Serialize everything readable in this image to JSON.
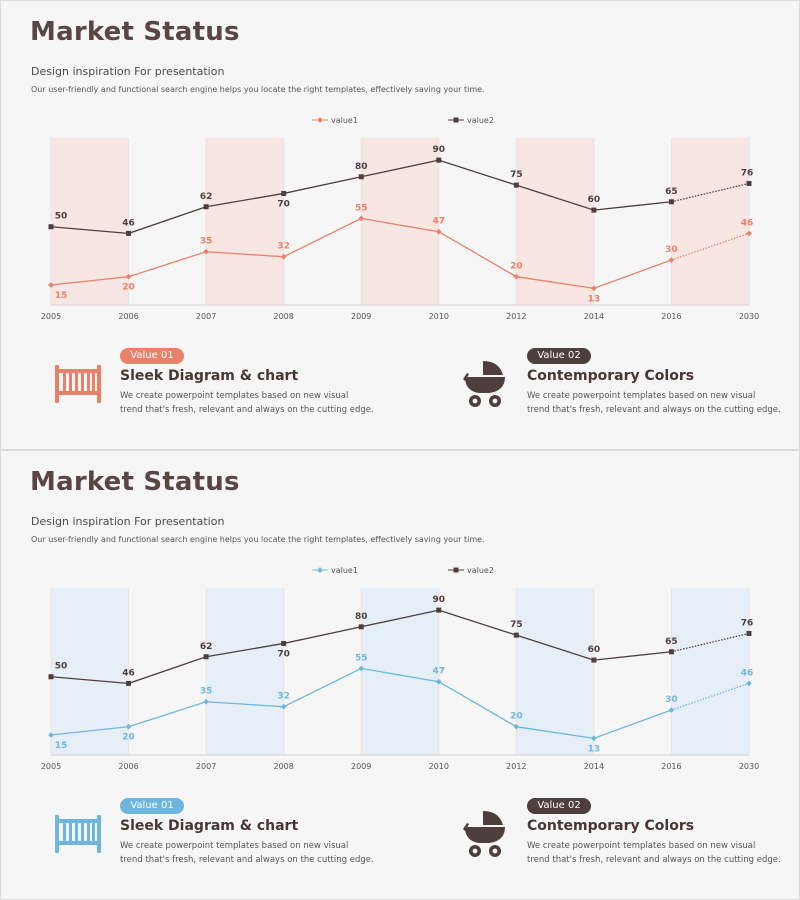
{
  "slides": [
    {
      "title": "Market Status",
      "subtitle": "Design inspiration For presentation",
      "description": "Our user-friendly and functional search engine helps you locate the right templates, effectively saving your time.",
      "accent": "#e8806a",
      "band": "#f8e6e2",
      "cards": [
        {
          "badge": "Value 01",
          "title": "Sleek Diagram & chart",
          "text_line1": "We create powerpoint templates based on new visual",
          "text_line2": "trend that's fresh, relevant and always on the cutting edge.",
          "icon": "crib-icon"
        },
        {
          "badge": "Value 02",
          "title": "Contemporary Colors",
          "text_line1": "We create powerpoint templates based on new visual",
          "text_line2": "trend that's fresh, relevant and always on the cutting edge.",
          "icon": "stroller-icon"
        }
      ]
    },
    {
      "title": "Market Status",
      "subtitle": "Design inspiration For presentation",
      "description": "Our user-friendly and functional search engine helps you locate the right templates, effectively saving your time.",
      "accent": "#6eb6df",
      "band": "#e6eff7",
      "cards": [
        {
          "badge": "Value 01",
          "title": "Sleek Diagram & chart",
          "text_line1": "We create powerpoint templates based on new visual",
          "text_line2": "trend that's fresh, relevant and always on the cutting edge.",
          "icon": "crib-icon"
        },
        {
          "badge": "Value 02",
          "title": "Contemporary Colors",
          "text_line1": "We create powerpoint templates based on new visual",
          "text_line2": "trend that's fresh, relevant and always on the cutting edge.",
          "icon": "stroller-icon"
        }
      ]
    }
  ],
  "dark_color": "#4f3e3e",
  "chart_data": [
    {
      "type": "line",
      "categories": [
        "2005",
        "2006",
        "2007",
        "2008",
        "2009",
        "2010",
        "2012",
        "2014",
        "2016",
        "2030"
      ],
      "series": [
        {
          "name": "value1",
          "values": [
            15,
            20,
            35,
            32,
            55,
            47,
            20,
            13,
            30,
            46
          ]
        },
        {
          "name": "value2",
          "values": [
            50,
            46,
            62,
            70,
            80,
            90,
            75,
            60,
            65,
            76
          ]
        }
      ],
      "legend": "top-center",
      "projected_last_segment": true
    },
    {
      "type": "line",
      "categories": [
        "2005",
        "2006",
        "2007",
        "2008",
        "2009",
        "2010",
        "2012",
        "2014",
        "2016",
        "2030"
      ],
      "series": [
        {
          "name": "value1",
          "values": [
            15,
            20,
            35,
            32,
            55,
            47,
            20,
            13,
            30,
            46
          ]
        },
        {
          "name": "value2",
          "values": [
            50,
            46,
            62,
            70,
            80,
            90,
            75,
            60,
            65,
            76
          ]
        }
      ],
      "legend": "top-center",
      "projected_last_segment": true
    }
  ]
}
